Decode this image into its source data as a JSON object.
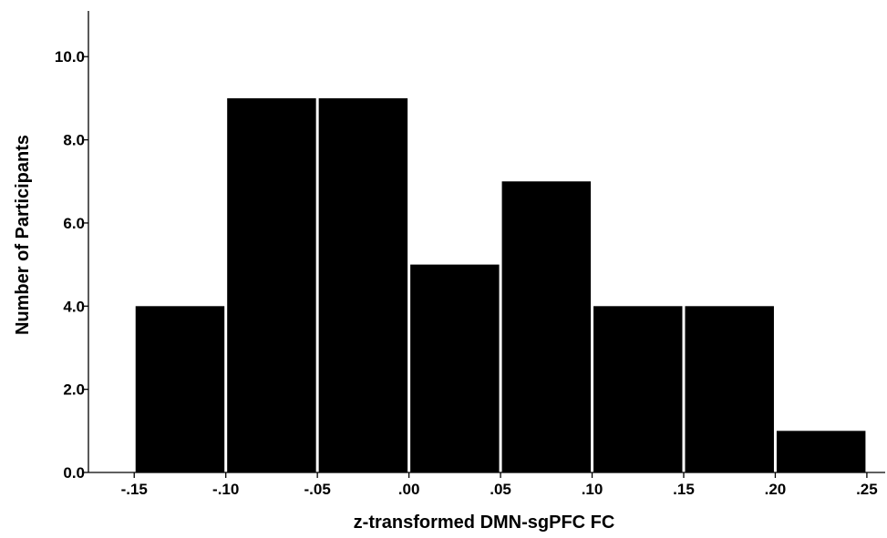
{
  "chart_data": {
    "type": "bar",
    "subtype": "histogram",
    "title": "",
    "xlabel": "z-transformed DMN-sgPFC FC",
    "ylabel": "Number of Participants",
    "bin_edges": [
      -0.15,
      -0.1,
      -0.05,
      0.0,
      0.05,
      0.1,
      0.15,
      0.2,
      0.25
    ],
    "values": [
      4,
      9,
      9,
      5,
      7,
      4,
      4,
      1
    ],
    "x_tick_labels": [
      "-.15",
      "-.10",
      "-.05",
      ".00",
      ".05",
      ".10",
      ".15",
      ".20",
      ".25"
    ],
    "y_ticks": [
      0,
      2,
      4,
      6,
      8,
      10
    ],
    "y_tick_labels": [
      "0.0",
      "2.0",
      "4.0",
      "6.0",
      "8.0",
      "10.0"
    ],
    "xlim": [
      -0.175,
      0.26
    ],
    "ylim": [
      0,
      11.1
    ],
    "grid": false,
    "legend": "none",
    "colors": {
      "bar": "#000000",
      "bar_edge": "#ffffff",
      "axis": "#000000",
      "background": "#ffffff"
    }
  }
}
